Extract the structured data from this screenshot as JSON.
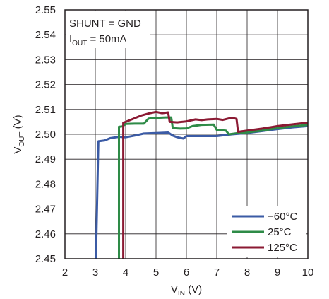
{
  "chart_data": {
    "type": "line",
    "title": "",
    "xlabel_main": "V",
    "xlabel_sub": "IN",
    "xlabel_unit": " (V)",
    "ylabel_main": "V",
    "ylabel_sub": "OUT",
    "ylabel_unit": " (V)",
    "xlim": [
      2,
      10
    ],
    "ylim": [
      2.45,
      2.55
    ],
    "xticks": [
      "2",
      "3",
      "4",
      "5",
      "6",
      "7",
      "8",
      "9",
      "10"
    ],
    "yticks": [
      "2.45",
      "2.46",
      "2.47",
      "2.48",
      "2.49",
      "2.50",
      "2.51",
      "2.52",
      "2.53",
      "2.54",
      "2.55"
    ],
    "grid": true,
    "annotations": {
      "line1": "SHUNT = GND",
      "line2_main": "I",
      "line2_sub": "OUT",
      "line2_rest": " = 50mA"
    },
    "legend_position": "bottom-right",
    "series": [
      {
        "name": "−60°C",
        "color": "#3b5ba5",
        "points": [
          [
            3.02,
            2.45
          ],
          [
            3.1,
            2.4972
          ],
          [
            3.3,
            2.4975
          ],
          [
            3.5,
            2.4985
          ],
          [
            3.8,
            2.499
          ],
          [
            4.0,
            2.4988
          ],
          [
            4.3,
            2.4995
          ],
          [
            4.6,
            2.5003
          ],
          [
            5.0,
            2.5005
          ],
          [
            5.4,
            2.5007
          ],
          [
            5.55,
            2.4995
          ],
          [
            5.7,
            2.4988
          ],
          [
            5.9,
            2.4983
          ],
          [
            6.0,
            2.4993
          ],
          [
            6.5,
            2.4993
          ],
          [
            7.0,
            2.4993
          ],
          [
            7.5,
            2.5
          ],
          [
            8.0,
            2.5005
          ],
          [
            8.5,
            2.5013
          ],
          [
            9.0,
            2.5021
          ],
          [
            9.5,
            2.5028
          ],
          [
            10.0,
            2.5033
          ]
        ]
      },
      {
        "name": "25°C",
        "color": "#2e8b47",
        "points": [
          [
            3.78,
            2.45
          ],
          [
            3.78,
            2.503
          ],
          [
            3.9,
            2.5032
          ],
          [
            4.0,
            2.5042
          ],
          [
            4.3,
            2.5043
          ],
          [
            4.6,
            2.5043
          ],
          [
            4.75,
            2.5063
          ],
          [
            5.0,
            2.5066
          ],
          [
            5.3,
            2.5068
          ],
          [
            5.5,
            2.5068
          ],
          [
            5.55,
            2.5025
          ],
          [
            5.8,
            2.5023
          ],
          [
            6.0,
            2.5024
          ],
          [
            6.2,
            2.5033
          ],
          [
            6.5,
            2.5038
          ],
          [
            6.9,
            2.5039
          ],
          [
            7.0,
            2.5018
          ],
          [
            7.3,
            2.5015
          ],
          [
            7.4,
            2.5
          ],
          [
            7.7,
            2.5005
          ],
          [
            8.0,
            2.5008
          ],
          [
            8.5,
            2.5015
          ],
          [
            9.0,
            2.5025
          ],
          [
            9.5,
            2.5032
          ],
          [
            10.0,
            2.5038
          ]
        ]
      },
      {
        "name": "125°C",
        "color": "#8b1a33",
        "points": [
          [
            3.92,
            2.45
          ],
          [
            3.92,
            2.5047
          ],
          [
            4.0,
            2.505
          ],
          [
            4.2,
            2.506
          ],
          [
            4.5,
            2.5075
          ],
          [
            4.8,
            2.5085
          ],
          [
            5.0,
            2.509
          ],
          [
            5.2,
            2.5085
          ],
          [
            5.4,
            2.5088
          ],
          [
            5.45,
            2.505
          ],
          [
            5.7,
            2.5048
          ],
          [
            6.0,
            2.5052
          ],
          [
            6.3,
            2.506
          ],
          [
            6.5,
            2.5057
          ],
          [
            6.7,
            2.506
          ],
          [
            7.0,
            2.5062
          ],
          [
            7.2,
            2.5058
          ],
          [
            7.5,
            2.5067
          ],
          [
            7.65,
            2.5062
          ],
          [
            7.7,
            2.501
          ],
          [
            8.0,
            2.5015
          ],
          [
            8.5,
            2.5023
          ],
          [
            9.0,
            2.5033
          ],
          [
            9.5,
            2.504
          ],
          [
            10.0,
            2.5047
          ]
        ]
      }
    ]
  }
}
